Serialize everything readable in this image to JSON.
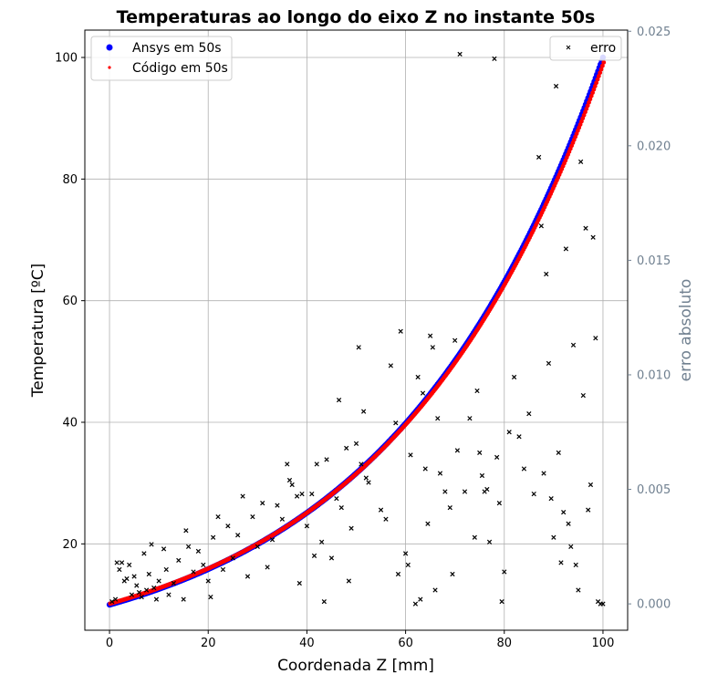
{
  "chart_data": {
    "type": "scatter",
    "title": "Temperaturas ao longo do eixo Z no instante 50s",
    "xlabel": "Coordenada Z [mm]",
    "ylabel": "Temperatura [ºC]",
    "y2label": "erro absoluto",
    "xlim": [
      -5,
      105
    ],
    "ylim": [
      5.8,
      104.5
    ],
    "y2lim": [
      -0.00115,
      0.02505
    ],
    "xticks": [
      "0",
      "20",
      "40",
      "60",
      "80",
      "100"
    ],
    "yticks": [
      "20",
      "40",
      "60",
      "80",
      "100"
    ],
    "y2ticks": [
      "0.000",
      "0.005",
      "0.010",
      "0.015",
      "0.020",
      "0.025"
    ],
    "grid": true,
    "legend_left_placement": "top-left",
    "legend_right_placement": "top-right",
    "series": [
      {
        "name": "Ansys em 50s",
        "color": "#0000ff",
        "axis": "left",
        "marker": "circle",
        "curve": {
          "x_start": 0,
          "x_end": 100,
          "y_start": 10,
          "y_end": 100
        }
      },
      {
        "name": "Código em 50s",
        "color": "#ff0000",
        "axis": "left",
        "marker": "dot",
        "curve": {
          "x_start": 0,
          "x_end": 100,
          "y_start": 10,
          "y_end": 99
        }
      },
      {
        "name": "erro",
        "color": "#000000",
        "axis": "right",
        "marker": "x",
        "points": [
          [
            0.5,
            0.0001
          ],
          [
            1.2,
            0.0002
          ],
          [
            1.5,
            0.0018
          ],
          [
            2.0,
            0.0015
          ],
          [
            2.5,
            0.0018
          ],
          [
            3.0,
            0.001
          ],
          [
            3.5,
            0.0011
          ],
          [
            4.0,
            0.0017
          ],
          [
            4.5,
            0.0004
          ],
          [
            5.0,
            0.0012
          ],
          [
            5.5,
            0.0008
          ],
          [
            6.0,
            0.0005
          ],
          [
            6.5,
            0.0003
          ],
          [
            7.0,
            0.0022
          ],
          [
            7.5,
            0.0006
          ],
          [
            8.0,
            0.0013
          ],
          [
            8.5,
            0.0026
          ],
          [
            9.0,
            0.0007
          ],
          [
            9.5,
            0.0002
          ],
          [
            10.0,
            0.001
          ],
          [
            11.0,
            0.0024
          ],
          [
            11.5,
            0.0015
          ],
          [
            12.0,
            0.0004
          ],
          [
            13.0,
            0.0009
          ],
          [
            14.0,
            0.0019
          ],
          [
            15.0,
            0.0002
          ],
          [
            15.5,
            0.0032
          ],
          [
            16.0,
            0.0025
          ],
          [
            17.0,
            0.0014
          ],
          [
            18.0,
            0.0023
          ],
          [
            19.0,
            0.0017
          ],
          [
            20.0,
            0.001
          ],
          [
            20.5,
            0.0003
          ],
          [
            21.0,
            0.0029
          ],
          [
            22.0,
            0.0038
          ],
          [
            23.0,
            0.0015
          ],
          [
            24.0,
            0.0034
          ],
          [
            25.0,
            0.002
          ],
          [
            26.0,
            0.003
          ],
          [
            27.0,
            0.0047
          ],
          [
            28.0,
            0.0012
          ],
          [
            29.0,
            0.0038
          ],
          [
            30.0,
            0.0025
          ],
          [
            31.0,
            0.0044
          ],
          [
            32.0,
            0.0016
          ],
          [
            33.0,
            0.0028
          ],
          [
            34.0,
            0.0043
          ],
          [
            35.0,
            0.0037
          ],
          [
            36.0,
            0.0061
          ],
          [
            36.5,
            0.0054
          ],
          [
            37.0,
            0.0052
          ],
          [
            38.0,
            0.0047
          ],
          [
            38.5,
            0.0009
          ],
          [
            39.0,
            0.0048
          ],
          [
            40.0,
            0.0034
          ],
          [
            41.0,
            0.0048
          ],
          [
            41.5,
            0.0021
          ],
          [
            42.0,
            0.0061
          ],
          [
            43.0,
            0.0027
          ],
          [
            43.5,
            0.0001
          ],
          [
            44.0,
            0.0063
          ],
          [
            45.0,
            0.002
          ],
          [
            46.0,
            0.0046
          ],
          [
            46.5,
            0.0089
          ],
          [
            47.0,
            0.0042
          ],
          [
            48.0,
            0.0068
          ],
          [
            48.5,
            0.001
          ],
          [
            49.0,
            0.0033
          ],
          [
            50.0,
            0.007
          ],
          [
            50.5,
            0.0112
          ],
          [
            51.0,
            0.0061
          ],
          [
            51.5,
            0.0084
          ],
          [
            52.0,
            0.0055
          ],
          [
            52.5,
            0.0053
          ],
          [
            55.0,
            0.0041
          ],
          [
            56.0,
            0.0037
          ],
          [
            57.0,
            0.0104
          ],
          [
            58.0,
            0.0079
          ],
          [
            58.5,
            0.0013
          ],
          [
            59.0,
            0.0119
          ],
          [
            60.0,
            0.0022
          ],
          [
            60.5,
            0.0017
          ],
          [
            61.0,
            0.0065
          ],
          [
            62.0,
            0.0
          ],
          [
            62.5,
            0.0099
          ],
          [
            63.0,
            0.0002
          ],
          [
            63.5,
            0.0092
          ],
          [
            64.0,
            0.0059
          ],
          [
            64.5,
            0.0035
          ],
          [
            65.0,
            0.0117
          ],
          [
            65.5,
            0.0112
          ],
          [
            66.0,
            0.0006
          ],
          [
            66.5,
            0.0081
          ],
          [
            67.0,
            0.0057
          ],
          [
            68.0,
            0.0049
          ],
          [
            69.0,
            0.0042
          ],
          [
            69.5,
            0.0013
          ],
          [
            70.0,
            0.0115
          ],
          [
            70.5,
            0.0067
          ],
          [
            71.0,
            0.024
          ],
          [
            72.0,
            0.0049
          ],
          [
            73.0,
            0.0081
          ],
          [
            74.0,
            0.0029
          ],
          [
            74.5,
            0.0093
          ],
          [
            75.0,
            0.0066
          ],
          [
            75.5,
            0.0056
          ],
          [
            76.0,
            0.0049
          ],
          [
            76.5,
            0.005
          ],
          [
            77.0,
            0.0027
          ],
          [
            78.0,
            0.0238
          ],
          [
            78.5,
            0.0064
          ],
          [
            79.0,
            0.0044
          ],
          [
            79.5,
            0.0001
          ],
          [
            80.0,
            0.0014
          ],
          [
            81.0,
            0.0075
          ],
          [
            82.0,
            0.0099
          ],
          [
            83.0,
            0.0073
          ],
          [
            84.0,
            0.0059
          ],
          [
            85.0,
            0.0083
          ],
          [
            86.0,
            0.0048
          ],
          [
            87.0,
            0.0195
          ],
          [
            87.5,
            0.0165
          ],
          [
            88.0,
            0.0057
          ],
          [
            88.5,
            0.0144
          ],
          [
            89.0,
            0.0105
          ],
          [
            89.5,
            0.0046
          ],
          [
            90.0,
            0.0029
          ],
          [
            90.5,
            0.0226
          ],
          [
            91.0,
            0.0066
          ],
          [
            91.5,
            0.0018
          ],
          [
            92.0,
            0.004
          ],
          [
            92.5,
            0.0155
          ],
          [
            93.0,
            0.0035
          ],
          [
            93.5,
            0.0025
          ],
          [
            94.0,
            0.0113
          ],
          [
            94.5,
            0.0017
          ],
          [
            95.0,
            0.0006
          ],
          [
            95.5,
            0.0193
          ],
          [
            96.0,
            0.0091
          ],
          [
            96.5,
            0.0164
          ],
          [
            97.0,
            0.0041
          ],
          [
            97.5,
            0.0052
          ],
          [
            98.0,
            0.016
          ],
          [
            98.5,
            0.0116
          ],
          [
            99.0,
            0.0001
          ],
          [
            99.5,
            0.0
          ],
          [
            100.0,
            0.0
          ]
        ]
      }
    ]
  }
}
